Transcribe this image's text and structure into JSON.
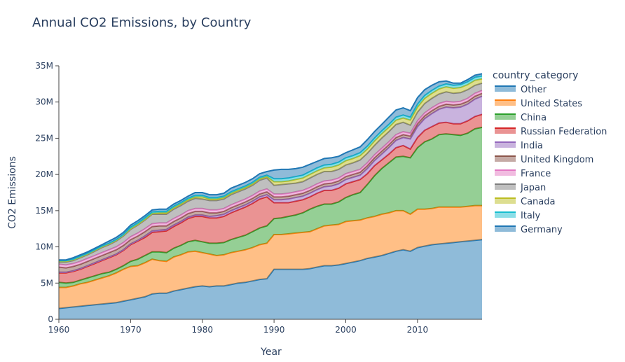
{
  "chart_data": {
    "type": "area",
    "title": "Annual CO2 Emissions, by Country",
    "xlabel": "Year",
    "ylabel": "CO2 Emissions",
    "xlim": [
      1960,
      2019
    ],
    "ylim": [
      0,
      35
    ],
    "x_ticks": [
      1960,
      1970,
      1980,
      1990,
      2000,
      2010
    ],
    "x_tick_labels": [
      "1960",
      "1970",
      "1980",
      "1990",
      "2000",
      "2010"
    ],
    "y_ticks": [
      0,
      5,
      10,
      15,
      20,
      25,
      30,
      35
    ],
    "y_tick_labels": [
      "0",
      "5M",
      "10M",
      "15M",
      "20M",
      "25M",
      "30M",
      "35M"
    ],
    "y_unit": "M",
    "stacked": true,
    "grid": false,
    "legend_title": "country_category",
    "legend_position": "right",
    "x": [
      1960,
      1961,
      1962,
      1963,
      1964,
      1965,
      1966,
      1967,
      1968,
      1969,
      1970,
      1971,
      1972,
      1973,
      1974,
      1975,
      1976,
      1977,
      1978,
      1979,
      1980,
      1981,
      1982,
      1983,
      1984,
      1985,
      1986,
      1987,
      1988,
      1989,
      1990,
      1991,
      1992,
      1993,
      1994,
      1995,
      1996,
      1997,
      1998,
      1999,
      2000,
      2001,
      2002,
      2003,
      2004,
      2005,
      2006,
      2007,
      2008,
      2009,
      2010,
      2011,
      2012,
      2013,
      2014,
      2015,
      2016,
      2017,
      2018,
      2019
    ],
    "cumulative_tops": {
      "Other": [
        1.5,
        1.6,
        1.7,
        1.8,
        1.9,
        2.0,
        2.1,
        2.2,
        2.3,
        2.5,
        2.7,
        2.9,
        3.1,
        3.5,
        3.6,
        3.6,
        3.9,
        4.1,
        4.3,
        4.5,
        4.6,
        4.5,
        4.6,
        4.6,
        4.8,
        5.0,
        5.1,
        5.3,
        5.5,
        5.6,
        6.9,
        6.9,
        6.9,
        6.9,
        6.9,
        7.0,
        7.2,
        7.4,
        7.4,
        7.5,
        7.7,
        7.9,
        8.1,
        8.4,
        8.6,
        8.8,
        9.1,
        9.4,
        9.6,
        9.4,
        9.9,
        10.1,
        10.3,
        10.4,
        10.5,
        10.6,
        10.7,
        10.8,
        10.9,
        11.0
      ],
      "United States": [
        4.4,
        4.4,
        4.6,
        4.9,
        5.1,
        5.4,
        5.7,
        6.0,
        6.4,
        6.9,
        7.3,
        7.4,
        7.8,
        8.3,
        8.1,
        8.0,
        8.6,
        8.9,
        9.3,
        9.4,
        9.2,
        9.0,
        8.8,
        8.9,
        9.2,
        9.4,
        9.6,
        9.9,
        10.3,
        10.5,
        11.7,
        11.7,
        11.8,
        11.9,
        12.0,
        12.1,
        12.5,
        12.9,
        13.0,
        13.1,
        13.5,
        13.6,
        13.7,
        14.0,
        14.2,
        14.5,
        14.7,
        15.0,
        15.0,
        14.5,
        15.2,
        15.2,
        15.3,
        15.5,
        15.5,
        15.5,
        15.5,
        15.6,
        15.7,
        15.7
      ],
      "China": [
        5.1,
        5.0,
        5.1,
        5.4,
        5.7,
        6.0,
        6.3,
        6.5,
        6.9,
        7.4,
        8.0,
        8.3,
        8.8,
        9.3,
        9.3,
        9.2,
        9.8,
        10.2,
        10.7,
        10.9,
        10.7,
        10.5,
        10.5,
        10.6,
        11.0,
        11.3,
        11.6,
        12.1,
        12.6,
        12.9,
        13.9,
        14.0,
        14.2,
        14.4,
        14.7,
        15.2,
        15.6,
        15.9,
        15.9,
        16.2,
        16.8,
        17.2,
        17.5,
        18.6,
        19.8,
        20.8,
        21.6,
        22.4,
        22.5,
        22.3,
        23.7,
        24.5,
        24.9,
        25.5,
        25.6,
        25.5,
        25.4,
        25.7,
        26.3,
        26.5
      ],
      "Russian Federation": [
        6.4,
        6.4,
        6.6,
        6.9,
        7.3,
        7.7,
        8.1,
        8.5,
        8.9,
        9.5,
        10.3,
        10.8,
        11.3,
        12.0,
        12.1,
        12.2,
        12.8,
        13.3,
        13.9,
        14.2,
        14.2,
        14.0,
        14.0,
        14.2,
        14.7,
        15.1,
        15.5,
        16.0,
        16.6,
        16.9,
        16.1,
        16.1,
        16.1,
        16.3,
        16.5,
        16.9,
        17.4,
        17.8,
        17.8,
        18.1,
        18.7,
        19.0,
        19.3,
        20.1,
        21.2,
        22.0,
        22.8,
        23.7,
        24.0,
        23.5,
        25.1,
        26.1,
        26.6,
        27.1,
        27.2,
        27.0,
        27.0,
        27.4,
        28.0,
        28.3
      ],
      "India": [
        6.5,
        6.5,
        6.7,
        7.0,
        7.4,
        7.8,
        8.2,
        8.6,
        9.0,
        9.6,
        10.4,
        10.9,
        11.5,
        12.2,
        12.3,
        12.4,
        13.0,
        13.5,
        14.1,
        14.4,
        14.4,
        14.2,
        14.3,
        14.5,
        15.0,
        15.4,
        15.8,
        16.3,
        16.9,
        17.2,
        16.5,
        16.5,
        16.6,
        16.8,
        17.0,
        17.4,
        17.9,
        18.3,
        18.4,
        18.7,
        19.3,
        19.6,
        19.9,
        20.8,
        21.9,
        22.8,
        23.7,
        24.7,
        25.1,
        24.9,
        26.6,
        27.7,
        28.4,
        29.0,
        29.3,
        29.2,
        29.3,
        29.7,
        30.4,
        30.8
      ],
      "United Kingdom": [
        7.2,
        7.1,
        7.3,
        7.6,
        8.0,
        8.4,
        8.8,
        9.2,
        9.6,
        10.2,
        11.0,
        11.5,
        12.1,
        12.8,
        12.9,
        12.9,
        13.5,
        14.0,
        14.6,
        14.9,
        14.9,
        14.7,
        14.7,
        14.9,
        15.4,
        15.8,
        16.2,
        16.7,
        17.3,
        17.6,
        16.9,
        16.9,
        17.0,
        17.2,
        17.4,
        17.8,
        18.3,
        18.7,
        18.8,
        19.1,
        19.7,
        20.0,
        20.3,
        21.2,
        22.3,
        23.2,
        24.1,
        25.1,
        25.5,
        25.3,
        27.0,
        28.1,
        28.8,
        29.4,
        29.7,
        29.6,
        29.7,
        30.1,
        30.8,
        31.2
      ],
      "France": [
        7.6,
        7.5,
        7.7,
        8.0,
        8.4,
        8.8,
        9.2,
        9.6,
        10.0,
        10.6,
        11.4,
        11.9,
        12.5,
        13.2,
        13.3,
        13.3,
        13.9,
        14.4,
        15.0,
        15.3,
        15.3,
        15.1,
        15.1,
        15.3,
        15.8,
        16.2,
        16.6,
        17.1,
        17.7,
        18.0,
        17.3,
        17.3,
        17.4,
        17.6,
        17.8,
        18.2,
        18.7,
        19.1,
        19.2,
        19.5,
        20.1,
        20.4,
        20.7,
        21.6,
        22.7,
        23.6,
        24.5,
        25.5,
        25.9,
        25.7,
        27.4,
        28.5,
        29.2,
        29.8,
        30.1,
        30.0,
        30.1,
        30.5,
        31.2,
        31.6
      ],
      "Japan": [
        7.9,
        7.9,
        8.1,
        8.5,
        8.9,
        9.4,
        9.9,
        10.3,
        10.8,
        11.5,
        12.4,
        13.0,
        13.7,
        14.5,
        14.5,
        14.5,
        15.2,
        15.7,
        16.3,
        16.7,
        16.6,
        16.4,
        16.4,
        16.6,
        17.2,
        17.6,
        18.0,
        18.5,
        19.2,
        19.5,
        18.5,
        18.6,
        18.7,
        18.8,
        19.0,
        19.5,
        20.0,
        20.4,
        20.4,
        20.7,
        21.3,
        21.6,
        22.0,
        22.9,
        24.0,
        25.0,
        25.9,
        26.9,
        27.2,
        26.8,
        28.6,
        29.8,
        30.5,
        31.1,
        31.4,
        31.2,
        31.3,
        31.7,
        32.3,
        32.6
      ],
      "Canada": [
        8.0,
        8.0,
        8.2,
        8.6,
        9.0,
        9.5,
        10.0,
        10.4,
        10.9,
        11.6,
        12.5,
        13.1,
        13.8,
        14.6,
        14.7,
        14.7,
        15.4,
        15.9,
        16.5,
        16.9,
        16.9,
        16.6,
        16.6,
        16.8,
        17.4,
        17.8,
        18.2,
        18.7,
        19.4,
        19.7,
        19.0,
        19.0,
        19.1,
        19.3,
        19.5,
        20.0,
        20.5,
        20.9,
        21.0,
        21.3,
        21.9,
        22.2,
        22.6,
        23.5,
        24.6,
        25.6,
        26.5,
        27.5,
        27.8,
        27.5,
        29.3,
        30.5,
        31.2,
        31.8,
        32.1,
        31.9,
        32.0,
        32.4,
        33.0,
        33.2
      ],
      "Italy": [
        8.1,
        8.1,
        8.3,
        8.7,
        9.1,
        9.6,
        10.1,
        10.5,
        11.0,
        11.7,
        12.7,
        13.3,
        14.0,
        14.8,
        14.9,
        14.9,
        15.6,
        16.1,
        16.7,
        17.1,
        17.1,
        16.8,
        16.8,
        17.0,
        17.6,
        18.0,
        18.4,
        18.9,
        19.6,
        19.9,
        19.4,
        19.4,
        19.5,
        19.7,
        19.9,
        20.4,
        20.9,
        21.3,
        21.4,
        21.7,
        22.3,
        22.6,
        23.0,
        23.9,
        25.0,
        26.0,
        26.9,
        27.9,
        28.2,
        27.9,
        29.7,
        30.9,
        31.6,
        32.2,
        32.5,
        32.3,
        32.4,
        32.8,
        33.4,
        33.6
      ],
      "Germany": [
        8.2,
        8.2,
        8.5,
        8.9,
        9.3,
        9.8,
        10.3,
        10.8,
        11.3,
        12.0,
        13.0,
        13.6,
        14.3,
        15.1,
        15.2,
        15.2,
        15.9,
        16.4,
        17.0,
        17.5,
        17.5,
        17.2,
        17.2,
        17.4,
        18.1,
        18.5,
        18.9,
        19.4,
        20.1,
        20.4,
        20.6,
        20.7,
        20.7,
        20.8,
        21.0,
        21.4,
        21.8,
        22.2,
        22.3,
        22.5,
        23.0,
        23.4,
        23.8,
        24.8,
        25.9,
        26.9,
        27.9,
        28.9,
        29.2,
        28.8,
        30.6,
        31.7,
        32.3,
        32.8,
        32.9,
        32.6,
        32.6,
        33.1,
        33.7,
        33.9
      ]
    },
    "series": [
      {
        "name": "Other",
        "color": "#1f77b4"
      },
      {
        "name": "United States",
        "color": "#ff7f0e"
      },
      {
        "name": "China",
        "color": "#2ca02c"
      },
      {
        "name": "Russian Federation",
        "color": "#d62728"
      },
      {
        "name": "India",
        "color": "#9467bd"
      },
      {
        "name": "United Kingdom",
        "color": "#8c564b"
      },
      {
        "name": "France",
        "color": "#e377c2"
      },
      {
        "name": "Japan",
        "color": "#7f7f7f"
      },
      {
        "name": "Canada",
        "color": "#bcbd22"
      },
      {
        "name": "Italy",
        "color": "#17becf"
      },
      {
        "name": "Germany",
        "color": "#1f77b4"
      }
    ]
  }
}
